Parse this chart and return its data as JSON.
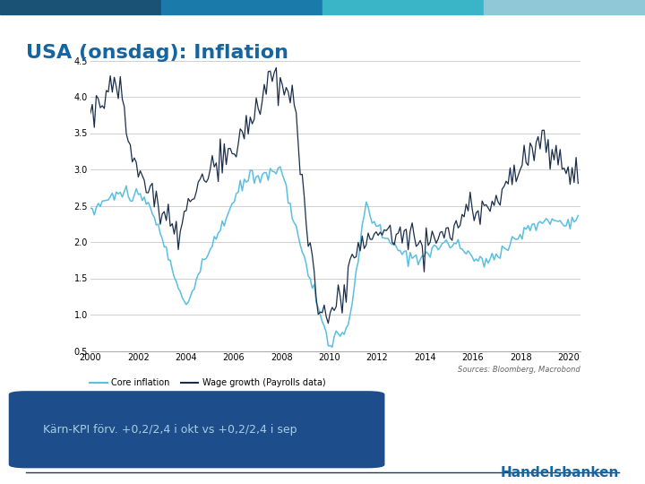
{
  "title": "USA (onsdag): Inflation",
  "title_color": "#1565a0",
  "title_fontsize": 16,
  "slide_bg_color": "#ffffff",
  "plot_bg_color": "#ffffff",
  "xlim": [
    2000,
    2020.5
  ],
  "ylim": [
    0.5,
    4.5
  ],
  "yticks": [
    0.5,
    1.0,
    1.5,
    2.0,
    2.5,
    3.0,
    3.5,
    4.0,
    4.5
  ],
  "xticks": [
    2000,
    2002,
    2004,
    2006,
    2008,
    2010,
    2012,
    2014,
    2016,
    2018,
    2020
  ],
  "core_inflation_color": "#5abfe0",
  "wage_growth_color": "#1a2e4a",
  "legend_labels": [
    "Core inflation",
    "Wage growth (Payrolls data)"
  ],
  "sources_text": "Sources: Bloomberg, Macrobond",
  "box_text": "Kärn-KPI förv. +0,2/2,4 i okt vs +0,2/2,4 i sep",
  "box_bg_color": "#1e4d8c",
  "box_text_color": "#a8cfe0",
  "handelsbanken_text": "Handelsbanken",
  "handelsbanken_color": "#1565a0",
  "top_colors": [
    "#1a5276",
    "#1a7aaa",
    "#3ab5c8",
    "#90c8d8"
  ]
}
